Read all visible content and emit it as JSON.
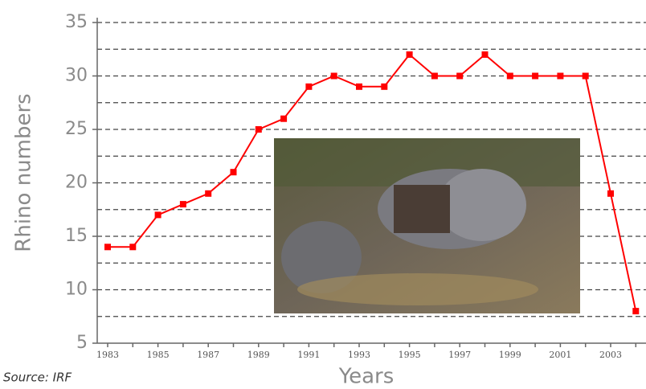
{
  "chart_data": {
    "type": "line",
    "x_label": "Years",
    "y_label": "Rhino numbers",
    "source": "Source: IRF",
    "categories": [
      "1983",
      null,
      "1985",
      null,
      "1987",
      null,
      "1989",
      null,
      "1991",
      null,
      "1993",
      null,
      "1995",
      null,
      "1997",
      null,
      "1999",
      null,
      "2001",
      null,
      "2003",
      null
    ],
    "series": [
      {
        "color": "#ff0000",
        "values": [
          14,
          14,
          17,
          18,
          19,
          21,
          25,
          26,
          29,
          30,
          29,
          29,
          32,
          30,
          30,
          32,
          30,
          30,
          30,
          30,
          19,
          8
        ]
      }
    ],
    "ylim": [
      5,
      35
    ],
    "yticks": [
      5,
      10,
      15,
      20,
      25,
      30,
      35
    ],
    "minor_grid": [
      7.5,
      12.5,
      17.5,
      22.5,
      27.5,
      32.5
    ],
    "grid": true
  }
}
